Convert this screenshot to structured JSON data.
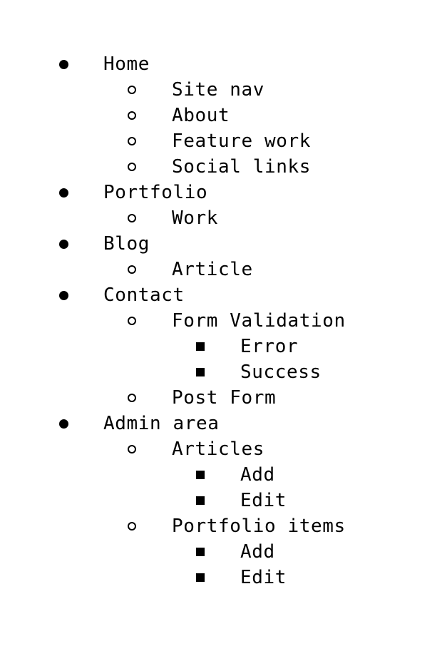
{
  "sitemap": {
    "items": [
      {
        "label": "Home",
        "level": 1
      },
      {
        "label": "Site nav",
        "level": 2
      },
      {
        "label": "About",
        "level": 2
      },
      {
        "label": "Feature work",
        "level": 2
      },
      {
        "label": "Social links",
        "level": 2
      },
      {
        "label": "Portfolio",
        "level": 1
      },
      {
        "label": "Work",
        "level": 2
      },
      {
        "label": "Blog",
        "level": 1
      },
      {
        "label": "Article",
        "level": 2
      },
      {
        "label": "Contact",
        "level": 1
      },
      {
        "label": "Form Validation",
        "level": 2
      },
      {
        "label": "Error",
        "level": 3
      },
      {
        "label": "Success",
        "level": 3
      },
      {
        "label": "Post Form",
        "level": 2
      },
      {
        "label": "Admin area",
        "level": 1
      },
      {
        "label": "Articles",
        "level": 2
      },
      {
        "label": "Add",
        "level": 3
      },
      {
        "label": "Edit",
        "level": 3
      },
      {
        "label": "Portfolio items",
        "level": 2
      },
      {
        "label": "Add",
        "level": 3
      },
      {
        "label": "Edit",
        "level": 3
      }
    ]
  }
}
